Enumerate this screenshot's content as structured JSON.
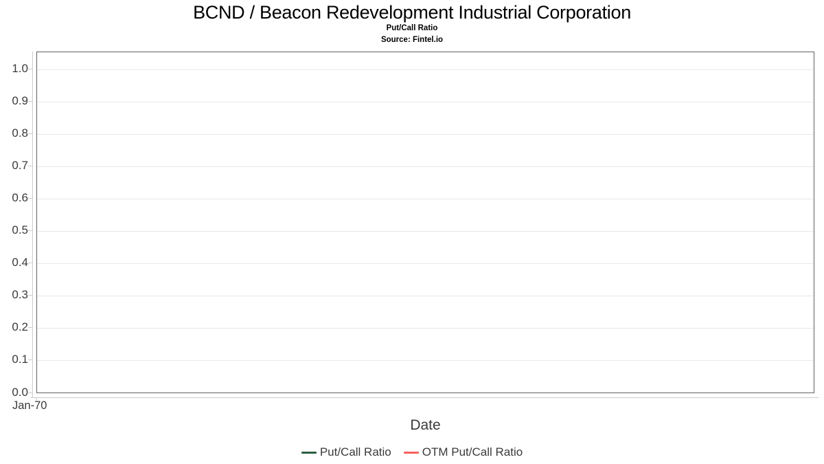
{
  "header": {
    "title": "BCND / Beacon Redevelopment Industrial Corporation",
    "subtitle": "Put/Call Ratio",
    "source": "Source: Fintel.io"
  },
  "chart_data": {
    "type": "line",
    "title": "BCND / Beacon Redevelopment Industrial Corporation",
    "subtitle": "Put/Call Ratio",
    "source": "Source: Fintel.io",
    "xlabel": "Date",
    "ylabel": "",
    "x_ticks": [
      "Jan-70"
    ],
    "y_ticks": [
      "1.0",
      "0.9",
      "0.8",
      "0.7",
      "0.6",
      "0.5",
      "0.4",
      "0.3",
      "0.2",
      "0.1",
      "0.0"
    ],
    "ylim": [
      0.0,
      1.05
    ],
    "grid": true,
    "legend_position": "bottom-center",
    "series": [
      {
        "name": "Put/Call Ratio",
        "color": "#2d5e40",
        "x": [],
        "values": []
      },
      {
        "name": "OTM Put/Call Ratio",
        "color": "#f8625f",
        "x": [],
        "values": []
      }
    ]
  },
  "colors": {
    "plot_border": "#5f5f5f",
    "axis_line": "#cccccc",
    "gridline": "#e7e7e7",
    "tick_label": "#3a3a3a",
    "title_text": "#000000",
    "background": "#ffffff"
  }
}
